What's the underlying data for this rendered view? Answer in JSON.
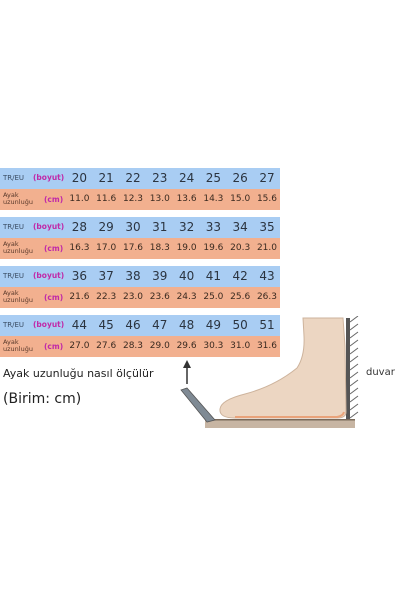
{
  "labels": {
    "size_label": "TR/EU",
    "size_unit": "(boyut)",
    "length_label_line1": "Ayak",
    "length_label_line2": "uzunluğu",
    "length_unit": "(cm)"
  },
  "tables": [
    {
      "sizes": [
        "20",
        "21",
        "22",
        "23",
        "24",
        "25",
        "26",
        "27"
      ],
      "lengths": [
        "11.0",
        "11.6",
        "12.3",
        "13.0",
        "13.6",
        "14.3",
        "15.0",
        "15.6"
      ]
    },
    {
      "sizes": [
        "28",
        "29",
        "30",
        "31",
        "32",
        "33",
        "34",
        "35"
      ],
      "lengths": [
        "16.3",
        "17.0",
        "17.6",
        "18.3",
        "19.0",
        "19.6",
        "20.3",
        "21.0"
      ]
    },
    {
      "sizes": [
        "36",
        "37",
        "38",
        "39",
        "40",
        "41",
        "42",
        "43"
      ],
      "lengths": [
        "21.6",
        "22.3",
        "23.0",
        "23.6",
        "24.3",
        "25.0",
        "25.6",
        "26.3"
      ]
    },
    {
      "sizes": [
        "44",
        "45",
        "46",
        "47",
        "48",
        "49",
        "50",
        "51"
      ],
      "lengths": [
        "27.0",
        "27.6",
        "28.3",
        "29.0",
        "29.6",
        "30.3",
        "31.0",
        "31.6"
      ]
    }
  ],
  "caption": {
    "how_to_measure": "Ayak uzunluğu nasıl ölçülür",
    "unit_note": "(Birim: cm)"
  },
  "illustration": {
    "wall_label": "duvar"
  },
  "colors": {
    "size_row": "#a9cdf3",
    "length_row": "#f2b08f",
    "unit_text": "#c02aa8"
  }
}
